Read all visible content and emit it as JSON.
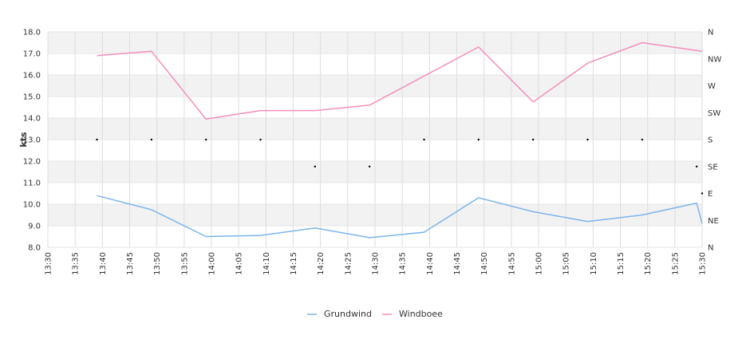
{
  "chart_data": {
    "type": "line",
    "title": "",
    "ylabel": "kts",
    "ylim": [
      8.0,
      18.0
    ],
    "yticks": [
      "8.0",
      "9.0",
      "10.0",
      "11.0",
      "12.0",
      "13.0",
      "14.0",
      "15.0",
      "16.0",
      "17.0",
      "18.0"
    ],
    "xlim": [
      "13:30",
      "15:30"
    ],
    "xticks": [
      "13:30",
      "13:35",
      "13:40",
      "13:45",
      "13:50",
      "13:55",
      "14:00",
      "14:05",
      "14:10",
      "14:15",
      "14:20",
      "14:25",
      "14:30",
      "14:35",
      "14:40",
      "14:45",
      "14:50",
      "14:55",
      "15:00",
      "15:05",
      "15:10",
      "15:15",
      "15:20",
      "15:25",
      "15:30"
    ],
    "right_axis_labels": [
      "N",
      "NE",
      "E",
      "SE",
      "S",
      "SW",
      "W",
      "NW",
      "N"
    ],
    "grid": true,
    "legend_position": "bottom",
    "series": [
      {
        "name": "Grundwind",
        "color": "#7cb5ec",
        "x": [
          "13:39",
          "13:49",
          "13:59",
          "14:09",
          "14:19",
          "14:29",
          "14:39",
          "14:49",
          "14:59",
          "15:09",
          "15:19",
          "15:29",
          "15:30"
        ],
        "values": [
          10.4,
          9.75,
          8.5,
          8.55,
          8.9,
          8.45,
          8.7,
          10.3,
          9.65,
          9.2,
          9.5,
          10.05,
          9.1
        ]
      },
      {
        "name": "Windboee",
        "color": "#f28fbd",
        "x": [
          "13:39",
          "13:49",
          "13:59",
          "14:09",
          "14:19",
          "14:29",
          "14:49",
          "14:59",
          "15:09",
          "15:19",
          "15:30"
        ],
        "values": [
          16.9,
          17.1,
          13.95,
          14.35,
          14.35,
          14.6,
          17.3,
          14.75,
          16.55,
          17.5,
          17.1
        ]
      }
    ],
    "direction_points": {
      "x": [
        "13:39",
        "13:49",
        "13:59",
        "14:09",
        "14:19",
        "14:29",
        "14:39",
        "14:49",
        "14:59",
        "15:09",
        "15:19",
        "15:29",
        "15:30"
      ],
      "direction": [
        "S",
        "S",
        "S",
        "S",
        "SE",
        "SE",
        "S",
        "S",
        "S",
        "S",
        "S",
        "SE",
        "E"
      ]
    }
  }
}
